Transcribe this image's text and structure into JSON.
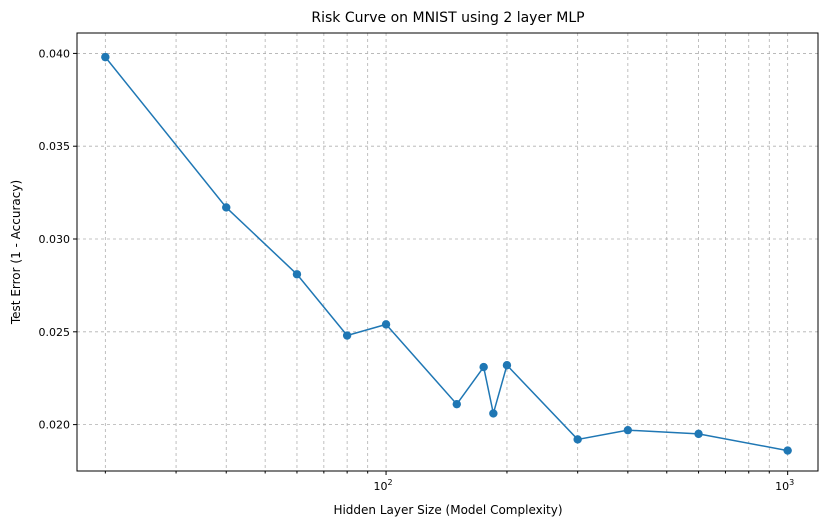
{
  "chart_data": {
    "type": "line",
    "title": "Risk Curve on MNIST using 2 layer MLP",
    "xlabel": "Hidden Layer Size (Model Complexity)",
    "ylabel": "Test Error (1 - Accuracy)",
    "xscale": "log",
    "xlim": [
      17,
      1190
    ],
    "ylim": [
      0.0175,
      0.0411
    ],
    "grid": true,
    "line_color": "#1f77b4",
    "marker": "circle",
    "x_major_ticks": [
      {
        "value": 100,
        "base": "10",
        "exp": "2"
      },
      {
        "value": 1000,
        "base": "10",
        "exp": "3"
      }
    ],
    "x_minor_ticks": [
      20,
      30,
      40,
      50,
      60,
      70,
      80,
      90,
      200,
      300,
      400,
      500,
      600,
      700,
      800,
      900
    ],
    "y_ticks": [
      {
        "value": 0.02,
        "label": "0.020"
      },
      {
        "value": 0.025,
        "label": "0.025"
      },
      {
        "value": 0.03,
        "label": "0.030"
      },
      {
        "value": 0.035,
        "label": "0.035"
      },
      {
        "value": 0.04,
        "label": "0.040"
      }
    ],
    "x": [
      20,
      40,
      60,
      80,
      100,
      150,
      175,
      185,
      200,
      300,
      400,
      600,
      1000
    ],
    "y": [
      0.0398,
      0.0317,
      0.0281,
      0.0248,
      0.0254,
      0.0211,
      0.0231,
      0.0206,
      0.0232,
      0.0192,
      0.0197,
      0.0195,
      0.0186
    ]
  }
}
